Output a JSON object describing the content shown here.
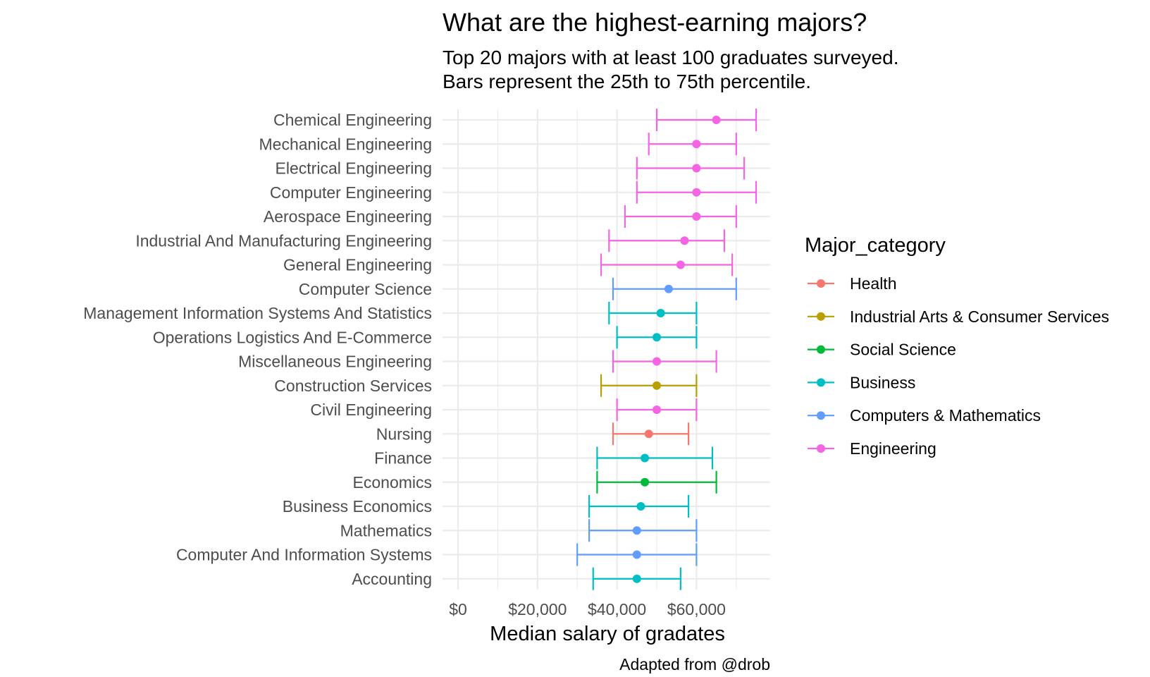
{
  "chart_data": {
    "type": "errorbar",
    "title": "What are the highest-earning majors?",
    "subtitle_lines": [
      "Top 20 majors with at least 100 graduates surveyed.",
      "Bars represent the 25th to 75th percentile."
    ],
    "xlabel": "Median salary of gradates",
    "caption": "Adapted from @drob",
    "xlim": [
      0,
      77000
    ],
    "x_ticks": [
      0,
      20000,
      40000,
      60000
    ],
    "x_tick_labels": [
      "$0",
      "$20,000",
      "$40,000",
      "$60,000"
    ],
    "grid": true,
    "legend": {
      "title": "Major_category",
      "position": "right",
      "entries": [
        {
          "name": "Health",
          "color": "#F8766D"
        },
        {
          "name": "Industrial Arts & Consumer Services",
          "color": "#B79F00"
        },
        {
          "name": "Social Science",
          "color": "#00BA38"
        },
        {
          "name": "Business",
          "color": "#00BFC4"
        },
        {
          "name": "Computers & Mathematics",
          "color": "#619CFF"
        },
        {
          "name": "Engineering",
          "color": "#F564E3"
        }
      ]
    },
    "majors": [
      {
        "major": "Chemical Engineering",
        "category": "Engineering",
        "p25": 50000,
        "median": 65000,
        "p75": 75000
      },
      {
        "major": "Mechanical Engineering",
        "category": "Engineering",
        "p25": 48000,
        "median": 60000,
        "p75": 70000
      },
      {
        "major": "Electrical Engineering",
        "category": "Engineering",
        "p25": 45000,
        "median": 60000,
        "p75": 72000
      },
      {
        "major": "Computer Engineering",
        "category": "Engineering",
        "p25": 45000,
        "median": 60000,
        "p75": 75000
      },
      {
        "major": "Aerospace Engineering",
        "category": "Engineering",
        "p25": 42000,
        "median": 60000,
        "p75": 70000
      },
      {
        "major": "Industrial And Manufacturing Engineering",
        "category": "Engineering",
        "p25": 38000,
        "median": 57000,
        "p75": 67000
      },
      {
        "major": "General Engineering",
        "category": "Engineering",
        "p25": 36000,
        "median": 56000,
        "p75": 69000
      },
      {
        "major": "Computer Science",
        "category": "Computers & Mathematics",
        "p25": 39000,
        "median": 53000,
        "p75": 70000
      },
      {
        "major": "Management Information Systems And Statistics",
        "category": "Business",
        "p25": 38000,
        "median": 51000,
        "p75": 60000
      },
      {
        "major": "Operations Logistics And E-Commerce",
        "category": "Business",
        "p25": 40000,
        "median": 50000,
        "p75": 60000
      },
      {
        "major": "Miscellaneous Engineering",
        "category": "Engineering",
        "p25": 39000,
        "median": 50000,
        "p75": 65000
      },
      {
        "major": "Construction Services",
        "category": "Industrial Arts & Consumer Services",
        "p25": 36000,
        "median": 50000,
        "p75": 60000
      },
      {
        "major": "Civil Engineering",
        "category": "Engineering",
        "p25": 40000,
        "median": 50000,
        "p75": 60000
      },
      {
        "major": "Nursing",
        "category": "Health",
        "p25": 39000,
        "median": 48000,
        "p75": 58000
      },
      {
        "major": "Finance",
        "category": "Business",
        "p25": 35000,
        "median": 47000,
        "p75": 64000
      },
      {
        "major": "Economics",
        "category": "Social Science",
        "p25": 35000,
        "median": 47000,
        "p75": 65000
      },
      {
        "major": "Business Economics",
        "category": "Business",
        "p25": 33000,
        "median": 46000,
        "p75": 58000
      },
      {
        "major": "Mathematics",
        "category": "Computers & Mathematics",
        "p25": 33000,
        "median": 45000,
        "p75": 60000
      },
      {
        "major": "Computer And Information Systems",
        "category": "Computers & Mathematics",
        "p25": 30000,
        "median": 45000,
        "p75": 60000
      },
      {
        "major": "Accounting",
        "category": "Business",
        "p25": 34000,
        "median": 45000,
        "p75": 56000
      }
    ]
  }
}
